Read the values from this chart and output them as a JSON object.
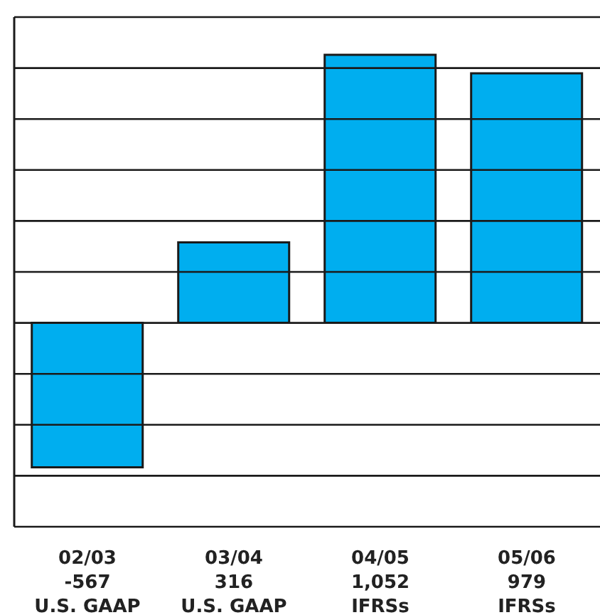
{
  "chart_data": {
    "type": "bar",
    "categories": [
      "02/03",
      "03/04",
      "04/05",
      "05/06"
    ],
    "values": [
      -567,
      316,
      1052,
      979
    ],
    "value_labels": [
      "-567",
      "316",
      "1,052",
      "979"
    ],
    "annotations": [
      "U.S. GAAP",
      "U.S. GAAP",
      "IFRSs",
      "IFRSs"
    ],
    "color": "#00aeef",
    "ylim": [
      -800,
      1200
    ],
    "yticks": [
      {
        "value": -800,
        "label": null
      },
      {
        "value": -600,
        "label": null
      },
      {
        "value": -400,
        "label": null
      },
      {
        "value": -200,
        "label": null
      },
      {
        "value": 0,
        "label": null
      },
      {
        "value": 200,
        "label": null
      },
      {
        "value": 400,
        "label": null
      },
      {
        "value": 600,
        "label": null
      },
      {
        "value": 800,
        "label": null
      },
      {
        "value": 1000,
        "label": null
      },
      {
        "value": 1200,
        "label": null
      }
    ],
    "grid": "y",
    "tick_labels": "x",
    "legend": false
  }
}
